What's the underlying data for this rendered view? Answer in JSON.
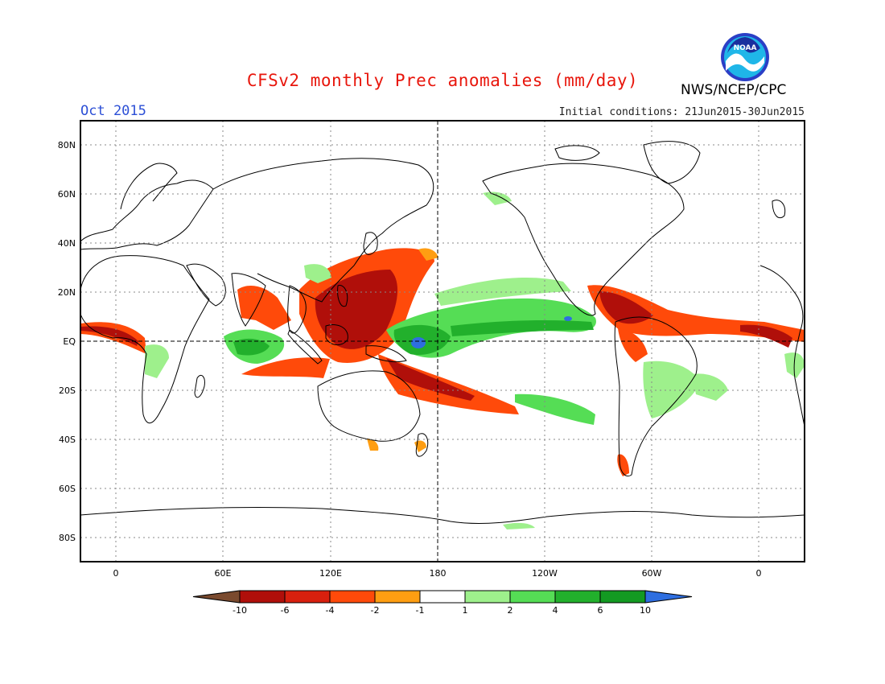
{
  "header": {
    "title": "CFSv2 monthly Prec anomalies (mm/day)",
    "target_month": "Oct 2015",
    "initial_conditions": "Initial conditions: 21Jun2015-30Jun2015",
    "agency": "NWS/NCEP/CPC",
    "logo_text": "NOAA"
  },
  "map": {
    "lat_labels": [
      "80N",
      "60N",
      "40N",
      "20N",
      "EQ",
      "20S",
      "40S",
      "60S",
      "80S"
    ],
    "lon_labels": [
      "0",
      "60E",
      "120E",
      "180",
      "120W",
      "60W",
      "0"
    ]
  },
  "colorbar": {
    "labels": [
      "-10",
      "-6",
      "-4",
      "-2",
      "-1",
      "1",
      "2",
      "4",
      "6",
      "10"
    ],
    "colors": [
      "#7a4a2e",
      "#b00f0a",
      "#d8200e",
      "#ff4a0a",
      "#ff9e12",
      "#ffffff",
      "#9ef08c",
      "#55dd55",
      "#22b02c",
      "#139a22",
      "#2e6ee0"
    ]
  }
}
